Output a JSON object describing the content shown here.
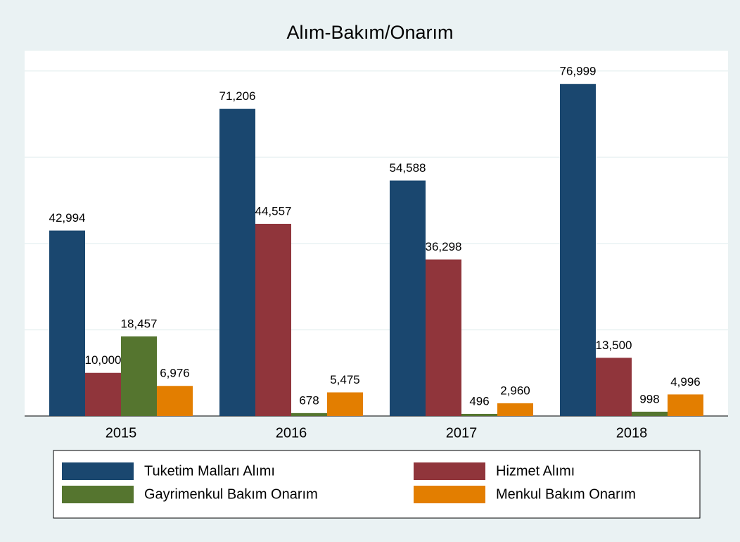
{
  "chart_data": {
    "type": "bar",
    "title": "Alım-Bakım/Onarım",
    "categories": [
      "2015",
      "2016",
      "2017",
      "2018"
    ],
    "series": [
      {
        "name": "Tuketim Malları Alımı",
        "color": "#1a476f",
        "values": [
          42994,
          71206,
          54588,
          76999
        ],
        "value_labels": [
          "42,994",
          "71,206",
          "54,588",
          "76,999"
        ]
      },
      {
        "name": "Hizmet Alımı",
        "color": "#90353b",
        "values": [
          10000,
          44557,
          36298,
          13500
        ],
        "value_labels": [
          "10,000",
          "44,557",
          "36,298",
          "13,500"
        ]
      },
      {
        "name": "Gayrimenkul Bakım Onarım",
        "color": "#55752f",
        "values": [
          18457,
          678,
          496,
          998
        ],
        "value_labels": [
          "18,457",
          "678",
          "496",
          "998"
        ]
      },
      {
        "name": "Menkul Bakım Onarım",
        "color": "#e37e00",
        "values": [
          6976,
          5475,
          2960,
          4996
        ],
        "value_labels": [
          "6,976",
          "5,475",
          "2,960",
          "4,996"
        ]
      }
    ],
    "ylim": [
      0,
      84700
    ],
    "ygrid": [
      0,
      20000,
      40000,
      60000,
      80000
    ],
    "grid": true
  }
}
